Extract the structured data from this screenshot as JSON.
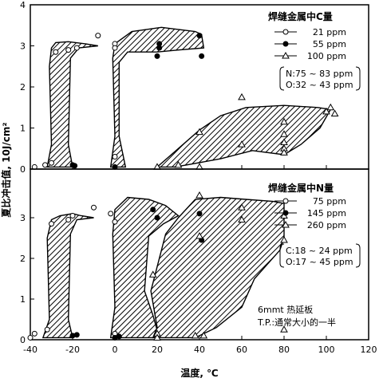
{
  "chart_data": [
    {
      "type": "scatter",
      "panel": "top",
      "ylabel": "夏比冲击值, 10J/cm²",
      "xlim": [
        -40,
        120
      ],
      "ylim": [
        0,
        4
      ],
      "xticks": [
        -40,
        -20,
        0,
        20,
        40,
        60,
        80,
        100,
        120
      ],
      "yticks": [
        0,
        1,
        2,
        3,
        4
      ],
      "legend": {
        "title": "焊缝金属中C量",
        "entries": [
          "21 ppm",
          "55 ppm",
          "100 ppm"
        ]
      },
      "annotation": [
        "N:75 ~ 83 ppm",
        "O:32 ~ 43 ppm"
      ],
      "series": [
        {
          "name": "21 ppm",
          "marker": "open-circle",
          "x": [
            -38,
            -33,
            -30,
            -28,
            -22,
            -18,
            -8,
            0,
            0,
            0
          ],
          "y": [
            0.05,
            0.1,
            0.15,
            2.85,
            2.9,
            2.95,
            3.25,
            3.05,
            2.95,
            0.3
          ]
        },
        {
          "name": "55 ppm",
          "marker": "filled-circle",
          "x": [
            -20,
            -19,
            0,
            20,
            21,
            21,
            40,
            41
          ],
          "y": [
            0.1,
            0.08,
            0.05,
            2.75,
            2.95,
            3.05,
            3.25,
            2.75
          ]
        },
        {
          "name": "100 ppm",
          "marker": "open-triangle",
          "x": [
            20,
            30,
            40,
            40,
            60,
            60,
            80,
            80,
            80,
            80,
            80,
            100,
            102,
            104
          ],
          "y": [
            0.05,
            0.1,
            0.9,
            0.05,
            1.75,
            0.6,
            1.15,
            0.85,
            0.65,
            0.5,
            0.4,
            1.4,
            1.5,
            1.35
          ]
        }
      ]
    },
    {
      "type": "scatter",
      "panel": "bottom",
      "xlabel": "温度, ℃",
      "ylabel": "夏比冲击值, 10J/cm²",
      "xlim": [
        -40,
        120
      ],
      "ylim": [
        0,
        4
      ],
      "xticks": [
        -40,
        -20,
        0,
        20,
        40,
        60,
        80,
        100,
        120
      ],
      "yticks": [
        0,
        1,
        2,
        3
      ],
      "legend": {
        "title": "焊缝金属中N量",
        "entries": [
          "75 ppm",
          "145 ppm",
          "260 ppm"
        ]
      },
      "annotation": [
        "C:18 ~ 24 ppm",
        "O:17 ~ 45 ppm"
      ],
      "note": [
        "6mmt 热延板",
        "T.P.:通常大小的一半"
      ],
      "series": [
        {
          "name": "75 ppm",
          "marker": "open-circle",
          "x": [
            -40,
            -38,
            -32,
            -30,
            -22,
            -20,
            -10,
            -2,
            0,
            0
          ],
          "y": [
            0.05,
            0.15,
            0.25,
            2.85,
            2.95,
            3.05,
            3.25,
            3.1,
            2.9,
            0.15
          ]
        },
        {
          "name": "145 ppm",
          "marker": "filled-circle",
          "x": [
            -20,
            -18,
            0,
            2,
            18,
            20,
            40,
            41
          ],
          "y": [
            0.1,
            0.12,
            0.05,
            0.08,
            3.2,
            3.0,
            3.1,
            2.45
          ]
        },
        {
          "name": "260 ppm",
          "marker": "open-triangle",
          "x": [
            18,
            20,
            20,
            38,
            40,
            40,
            42,
            60,
            60,
            80,
            80,
            80
          ],
          "y": [
            1.6,
            0.15,
            0.05,
            0.1,
            3.55,
            2.55,
            0.1,
            3.25,
            2.95,
            3.05,
            2.45,
            0.25
          ]
        }
      ]
    }
  ]
}
